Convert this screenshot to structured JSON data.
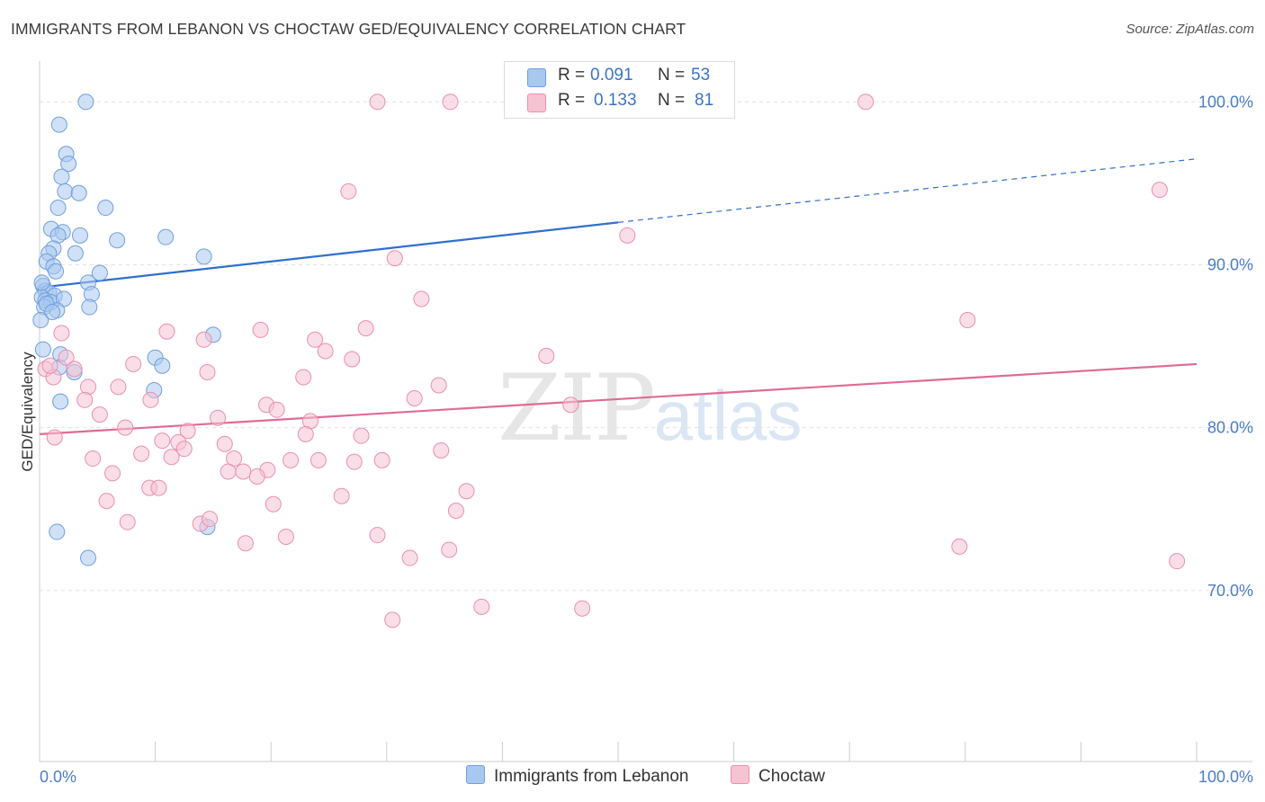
{
  "title": "IMMIGRANTS FROM LEBANON VS CHOCTAW GED/EQUIVALENCY CORRELATION CHART",
  "source": "Source: ZipAtlas.com",
  "watermark": {
    "zip": "ZIP",
    "atlas": "atlas"
  },
  "legend": {
    "rows": [
      {
        "r_label": "R =",
        "r_value": "0.091",
        "n_label": "N =",
        "n_value": "53"
      },
      {
        "r_label": "R =",
        "r_value": "0.133",
        "n_label": "N =",
        "n_value": "81"
      }
    ]
  },
  "bottom_legend": [
    "Immigrants from Lebanon",
    "Choctaw"
  ],
  "colors": {
    "blue_fill": "#a9c8f0",
    "blue_stroke": "#6f9fdc",
    "blue_line": "#2f6fce",
    "pink_fill": "#f6c3d3",
    "pink_stroke": "#e98fae",
    "pink_line": "#e06b93",
    "axis_text": "#4a7cc9",
    "grid": "#e2e2e2"
  },
  "chart_data": {
    "type": "scatter",
    "title": "IMMIGRANTS FROM LEBANON VS CHOCTAW GED/EQUIVALENCY CORRELATION CHART",
    "xlabel": "",
    "ylabel": "GED/Equivalency",
    "xlim": [
      0,
      100
    ],
    "ylim": [
      59.5,
      102.5
    ],
    "x_tick_labels": [
      "0.0%",
      "100.0%"
    ],
    "y_ticks": [
      70,
      80,
      90,
      100
    ],
    "y_tick_labels": [
      "70.0%",
      "80.0%",
      "90.0%",
      "100.0%"
    ],
    "grid": true,
    "series": [
      {
        "name": "Immigrants from Lebanon",
        "color": "#6f9fdc",
        "trend": {
          "x": [
            0,
            50
          ],
          "y": [
            88.6,
            92.6
          ],
          "dashed_to": [
            100,
            96.5
          ]
        },
        "points": [
          [
            4.0,
            100.0
          ],
          [
            42.5,
            100.0
          ],
          [
            1.7,
            98.6
          ],
          [
            2.3,
            96.8
          ],
          [
            2.5,
            96.2
          ],
          [
            1.9,
            95.4
          ],
          [
            2.2,
            94.5
          ],
          [
            3.4,
            94.4
          ],
          [
            1.6,
            93.5
          ],
          [
            5.7,
            93.5
          ],
          [
            1.0,
            92.2
          ],
          [
            2.0,
            92.0
          ],
          [
            1.6,
            91.8
          ],
          [
            3.5,
            91.8
          ],
          [
            6.7,
            91.5
          ],
          [
            10.9,
            91.7
          ],
          [
            1.2,
            91.0
          ],
          [
            0.8,
            90.7
          ],
          [
            3.1,
            90.7
          ],
          [
            14.2,
            90.5
          ],
          [
            0.6,
            90.2
          ],
          [
            1.2,
            89.9
          ],
          [
            1.4,
            89.6
          ],
          [
            5.2,
            89.5
          ],
          [
            4.2,
            88.9
          ],
          [
            0.3,
            88.7
          ],
          [
            0.5,
            88.4
          ],
          [
            0.8,
            88.3
          ],
          [
            1.3,
            88.1
          ],
          [
            4.5,
            88.2
          ],
          [
            0.2,
            88.0
          ],
          [
            0.5,
            87.8
          ],
          [
            1.0,
            87.7
          ],
          [
            2.1,
            87.9
          ],
          [
            0.4,
            87.4
          ],
          [
            1.5,
            87.2
          ],
          [
            4.3,
            87.4
          ],
          [
            0.1,
            86.6
          ],
          [
            15.0,
            85.7
          ],
          [
            0.3,
            84.8
          ],
          [
            1.8,
            84.5
          ],
          [
            10.0,
            84.3
          ],
          [
            10.6,
            83.8
          ],
          [
            1.7,
            83.7
          ],
          [
            3.0,
            83.4
          ],
          [
            9.9,
            82.3
          ],
          [
            1.8,
            81.6
          ],
          [
            14.5,
            73.9
          ],
          [
            1.5,
            73.6
          ],
          [
            4.2,
            72.0
          ],
          [
            0.2,
            88.9
          ],
          [
            0.6,
            87.6
          ],
          [
            1.1,
            87.1
          ]
        ]
      },
      {
        "name": "Choctaw",
        "color": "#e98fae",
        "trend": {
          "x": [
            0,
            100
          ],
          "y": [
            79.6,
            83.9
          ]
        },
        "points": [
          [
            29.2,
            100.0
          ],
          [
            35.5,
            100.0
          ],
          [
            71.4,
            100.0
          ],
          [
            26.7,
            94.5
          ],
          [
            96.8,
            94.6
          ],
          [
            50.8,
            91.8
          ],
          [
            30.7,
            90.4
          ],
          [
            33.0,
            87.9
          ],
          [
            80.2,
            86.6
          ],
          [
            1.9,
            85.8
          ],
          [
            11.0,
            85.9
          ],
          [
            19.1,
            86.0
          ],
          [
            28.2,
            86.1
          ],
          [
            14.2,
            85.4
          ],
          [
            23.8,
            85.4
          ],
          [
            24.7,
            84.7
          ],
          [
            2.3,
            84.3
          ],
          [
            27.0,
            84.2
          ],
          [
            43.8,
            84.4
          ],
          [
            0.5,
            83.6
          ],
          [
            14.5,
            83.4
          ],
          [
            1.2,
            83.1
          ],
          [
            22.8,
            83.1
          ],
          [
            4.2,
            82.5
          ],
          [
            6.8,
            82.5
          ],
          [
            34.5,
            82.6
          ],
          [
            3.9,
            81.7
          ],
          [
            9.6,
            81.7
          ],
          [
            32.4,
            81.8
          ],
          [
            19.6,
            81.4
          ],
          [
            20.5,
            81.1
          ],
          [
            45.9,
            81.4
          ],
          [
            5.2,
            80.8
          ],
          [
            15.4,
            80.6
          ],
          [
            23.4,
            80.4
          ],
          [
            7.4,
            80.0
          ],
          [
            12.8,
            79.8
          ],
          [
            1.3,
            79.4
          ],
          [
            23.0,
            79.6
          ],
          [
            27.8,
            79.5
          ],
          [
            10.6,
            79.2
          ],
          [
            12.0,
            79.1
          ],
          [
            16.0,
            79.0
          ],
          [
            8.8,
            78.4
          ],
          [
            12.5,
            78.7
          ],
          [
            11.4,
            78.2
          ],
          [
            34.7,
            78.6
          ],
          [
            4.6,
            78.1
          ],
          [
            16.8,
            78.1
          ],
          [
            21.7,
            78.0
          ],
          [
            24.1,
            78.0
          ],
          [
            29.6,
            78.0
          ],
          [
            27.2,
            77.9
          ],
          [
            19.7,
            77.4
          ],
          [
            16.3,
            77.3
          ],
          [
            17.6,
            77.3
          ],
          [
            18.8,
            77.0
          ],
          [
            6.3,
            77.2
          ],
          [
            36.9,
            76.1
          ],
          [
            9.5,
            76.3
          ],
          [
            10.3,
            76.3
          ],
          [
            26.1,
            75.8
          ],
          [
            5.8,
            75.5
          ],
          [
            20.2,
            75.3
          ],
          [
            36.0,
            74.9
          ],
          [
            7.6,
            74.2
          ],
          [
            13.9,
            74.1
          ],
          [
            14.7,
            74.4
          ],
          [
            21.3,
            73.3
          ],
          [
            29.2,
            73.4
          ],
          [
            17.8,
            72.9
          ],
          [
            32.0,
            72.0
          ],
          [
            35.4,
            72.5
          ],
          [
            79.5,
            72.7
          ],
          [
            98.3,
            71.8
          ],
          [
            38.2,
            69.0
          ],
          [
            46.9,
            68.9
          ],
          [
            30.5,
            68.2
          ],
          [
            0.9,
            83.8
          ],
          [
            3.0,
            83.6
          ],
          [
            8.1,
            83.9
          ]
        ]
      }
    ]
  }
}
